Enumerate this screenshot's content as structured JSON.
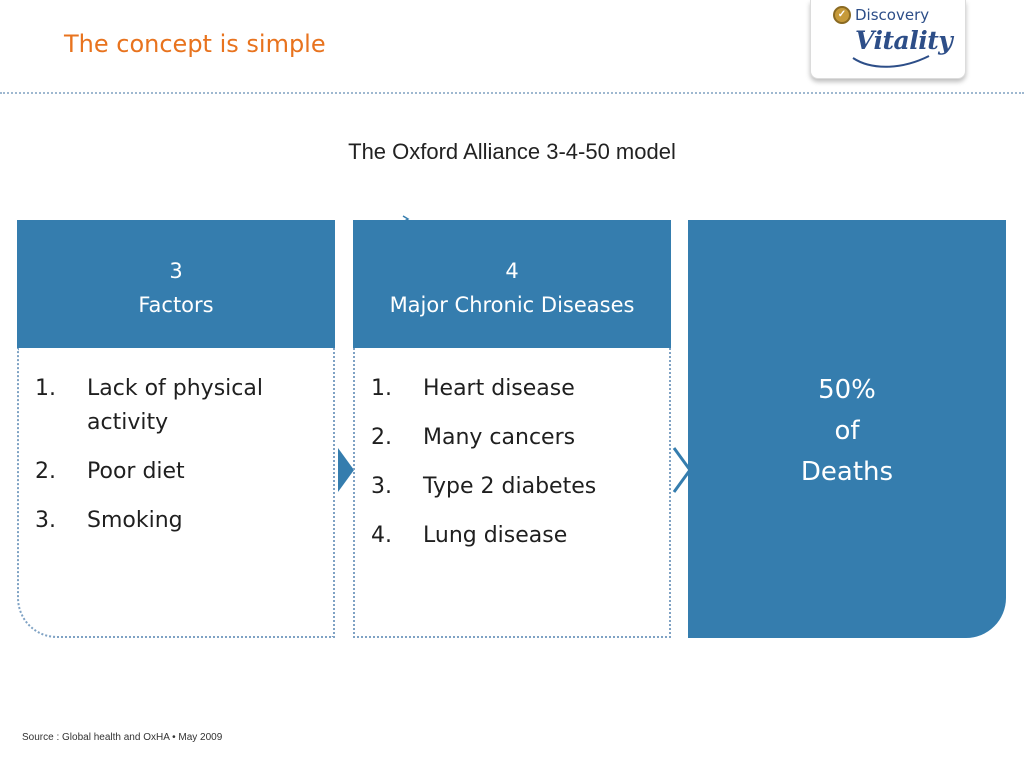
{
  "slide": {
    "title": "The concept is simple",
    "heading": "The Oxford Alliance 3-4-50 model",
    "source": "Source : Global health and OxHA • May 2009"
  },
  "logo": {
    "brand": "Discovery",
    "product": "Vitality",
    "icon": "discovery-emblem-icon"
  },
  "columns": [
    {
      "number": "3",
      "label": "Factors",
      "items": [
        {
          "num": "1.",
          "text": "Lack of physical activity"
        },
        {
          "num": "2.",
          "text": "Poor diet"
        },
        {
          "num": "3.",
          "text": "Smoking"
        }
      ]
    },
    {
      "number": "4",
      "label": "Major Chronic Diseases",
      "items": [
        {
          "num": "1.",
          "text": "Heart disease"
        },
        {
          "num": "2.",
          "text": "Many cancers"
        },
        {
          "num": "3.",
          "text": "Type 2 diabetes"
        },
        {
          "num": "4.",
          "text": "Lung disease"
        }
      ]
    }
  ],
  "outcome": {
    "line1": "50%",
    "line2": "of",
    "line3": "Deaths"
  },
  "colors": {
    "title": "#e8731e",
    "box_fill": "#357dae",
    "dotted_border": "#7fa2c4",
    "logo_blue": "#2d4e88"
  }
}
